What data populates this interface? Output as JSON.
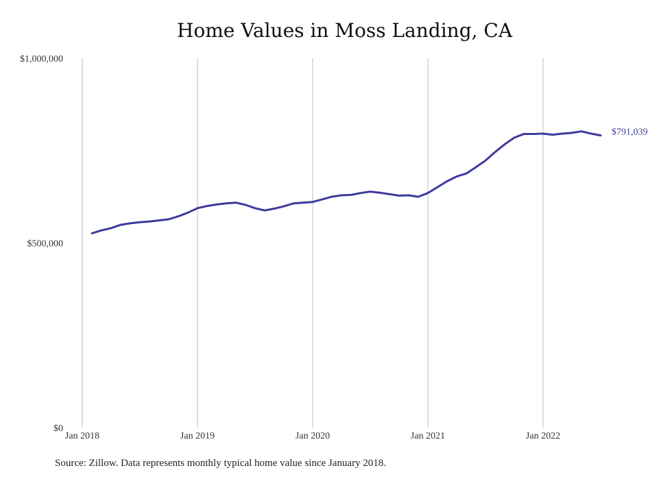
{
  "chart_data": {
    "type": "line",
    "title": "Home Values in Moss Landing, CA",
    "xlabel": "",
    "ylabel": "",
    "ylim": [
      0,
      1000000
    ],
    "y_ticks": [
      {
        "value": 0,
        "label": "$0"
      },
      {
        "value": 500000,
        "label": "$500,000"
      },
      {
        "value": 1000000,
        "label": "$1,000,000"
      }
    ],
    "x_ticks": [
      {
        "value": "2018-01",
        "label": "Jan 2018"
      },
      {
        "value": "2019-01",
        "label": "Jan 2019"
      },
      {
        "value": "2020-01",
        "label": "Jan 2020"
      },
      {
        "value": "2021-01",
        "label": "Jan 2021"
      },
      {
        "value": "2022-01",
        "label": "Jan 2022"
      }
    ],
    "grid": "vertical",
    "line_color": "#3d3a9c",
    "end_label": "$791,039",
    "series": [
      {
        "x": [
          "2018-02",
          "2018-03",
          "2018-04",
          "2018-05",
          "2018-06",
          "2018-07",
          "2018-08",
          "2018-09",
          "2018-10",
          "2018-11",
          "2018-12",
          "2019-01",
          "2019-02",
          "2019-03",
          "2019-04",
          "2019-05",
          "2019-06",
          "2019-07",
          "2019-08",
          "2019-09",
          "2019-10",
          "2019-11",
          "2019-12",
          "2020-01",
          "2020-02",
          "2020-03",
          "2020-04",
          "2020-05",
          "2020-06",
          "2020-07",
          "2020-08",
          "2020-09",
          "2020-10",
          "2020-11",
          "2020-12",
          "2021-01",
          "2021-02",
          "2021-03",
          "2021-04",
          "2021-05",
          "2021-06",
          "2021-07",
          "2021-08",
          "2021-09",
          "2021-10",
          "2021-11",
          "2021-12",
          "2022-01",
          "2022-02",
          "2022-03",
          "2022-04",
          "2022-05",
          "2022-06",
          "2022-07"
        ],
        "values": [
          526000,
          534000,
          540000,
          549000,
          553000,
          556000,
          558000,
          561000,
          564000,
          572000,
          582000,
          594000,
          600000,
          604000,
          607000,
          609000,
          603000,
          594000,
          588000,
          593000,
          599000,
          607000,
          609000,
          611000,
          618000,
          625000,
          629000,
          630000,
          635000,
          639000,
          636000,
          632000,
          628000,
          629000,
          625000,
          635000,
          651000,
          667000,
          680000,
          688000,
          705000,
          723000,
          746000,
          767000,
          785000,
          795000,
          795000,
          796000,
          793000,
          796000,
          798000,
          802000,
          796000,
          791039
        ]
      }
    ]
  },
  "source_note": "Source: Zillow. Data represents monthly typical home value since January 2018."
}
